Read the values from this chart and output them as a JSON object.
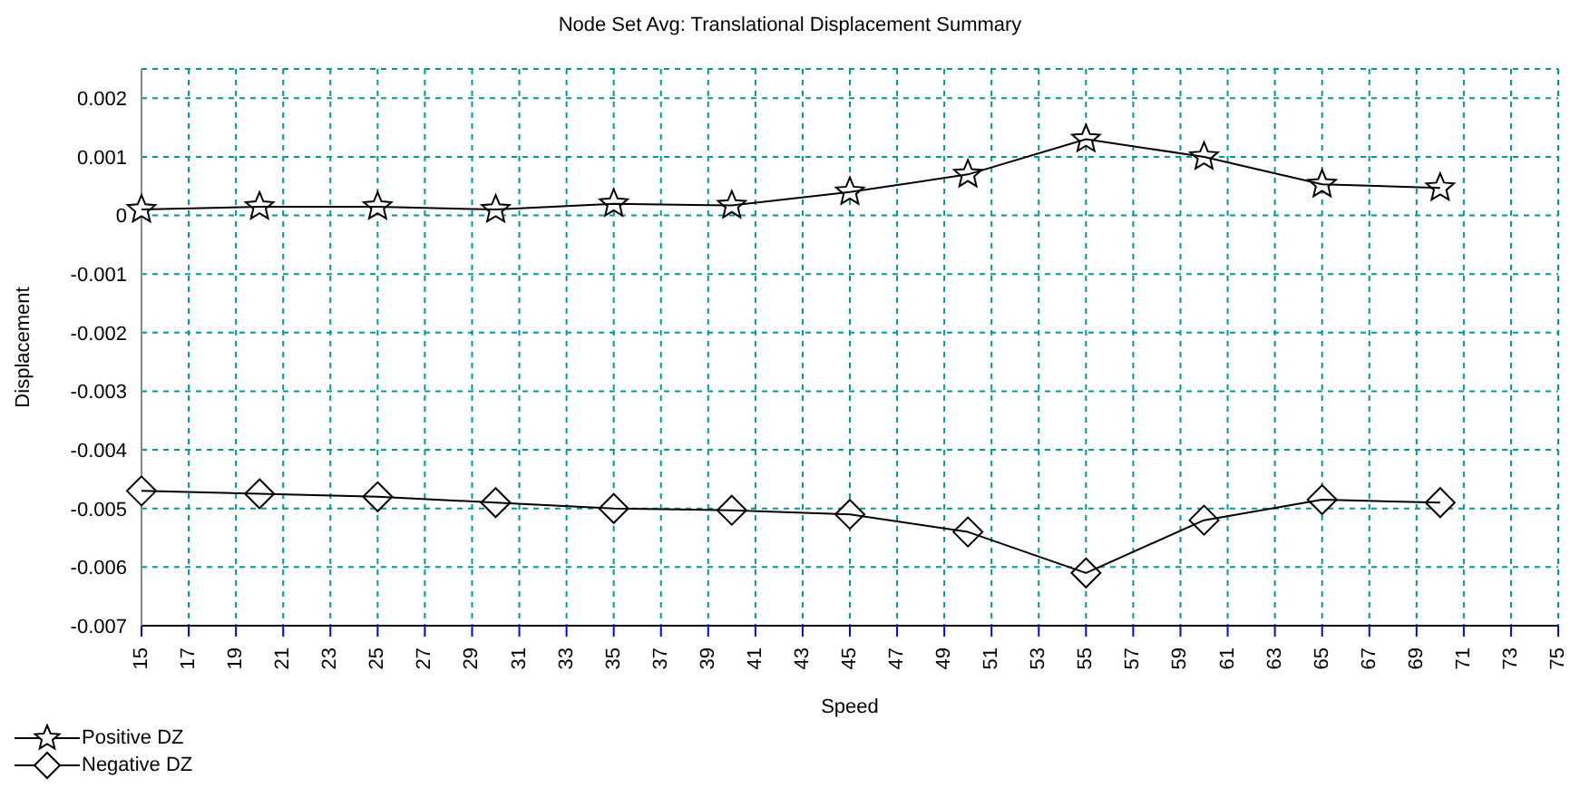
{
  "chart_data": {
    "type": "line",
    "title": "Node Set Avg: Translational Displacement Summary",
    "xlabel": "Speed",
    "ylabel": "Displacement",
    "x": [
      15,
      20,
      25,
      30,
      35,
      40,
      45,
      50,
      55,
      60,
      65,
      70
    ],
    "series": [
      {
        "name": "Positive DZ",
        "color": "#000000",
        "marker": "star",
        "values": [
          0.0001,
          0.00015,
          0.00015,
          0.0001,
          0.0002,
          0.00017,
          0.0004,
          0.0007,
          0.0013,
          0.001,
          0.00053,
          0.00047
        ]
      },
      {
        "name": "Negative DZ",
        "color": "#000000",
        "marker": "diamond",
        "values": [
          -0.0047,
          -0.00475,
          -0.0048,
          -0.0049,
          -0.005,
          -0.00503,
          -0.0051,
          -0.0054,
          -0.0061,
          -0.0052,
          -0.00485,
          -0.0049
        ]
      }
    ],
    "xlim": [
      15,
      75
    ],
    "xticks": [
      15,
      17,
      19,
      21,
      23,
      25,
      27,
      29,
      31,
      33,
      35,
      37,
      39,
      41,
      43,
      45,
      47,
      49,
      51,
      53,
      55,
      57,
      59,
      61,
      63,
      65,
      67,
      69,
      71,
      73,
      75
    ],
    "ylim": [
      -0.007,
      0.0025
    ],
    "yticks": [
      -0.007,
      -0.006,
      -0.005,
      -0.004,
      -0.003,
      -0.002,
      -0.001,
      0,
      0.001,
      0.002
    ],
    "grid": true,
    "legend": "bottom left",
    "line_style": "solid"
  }
}
